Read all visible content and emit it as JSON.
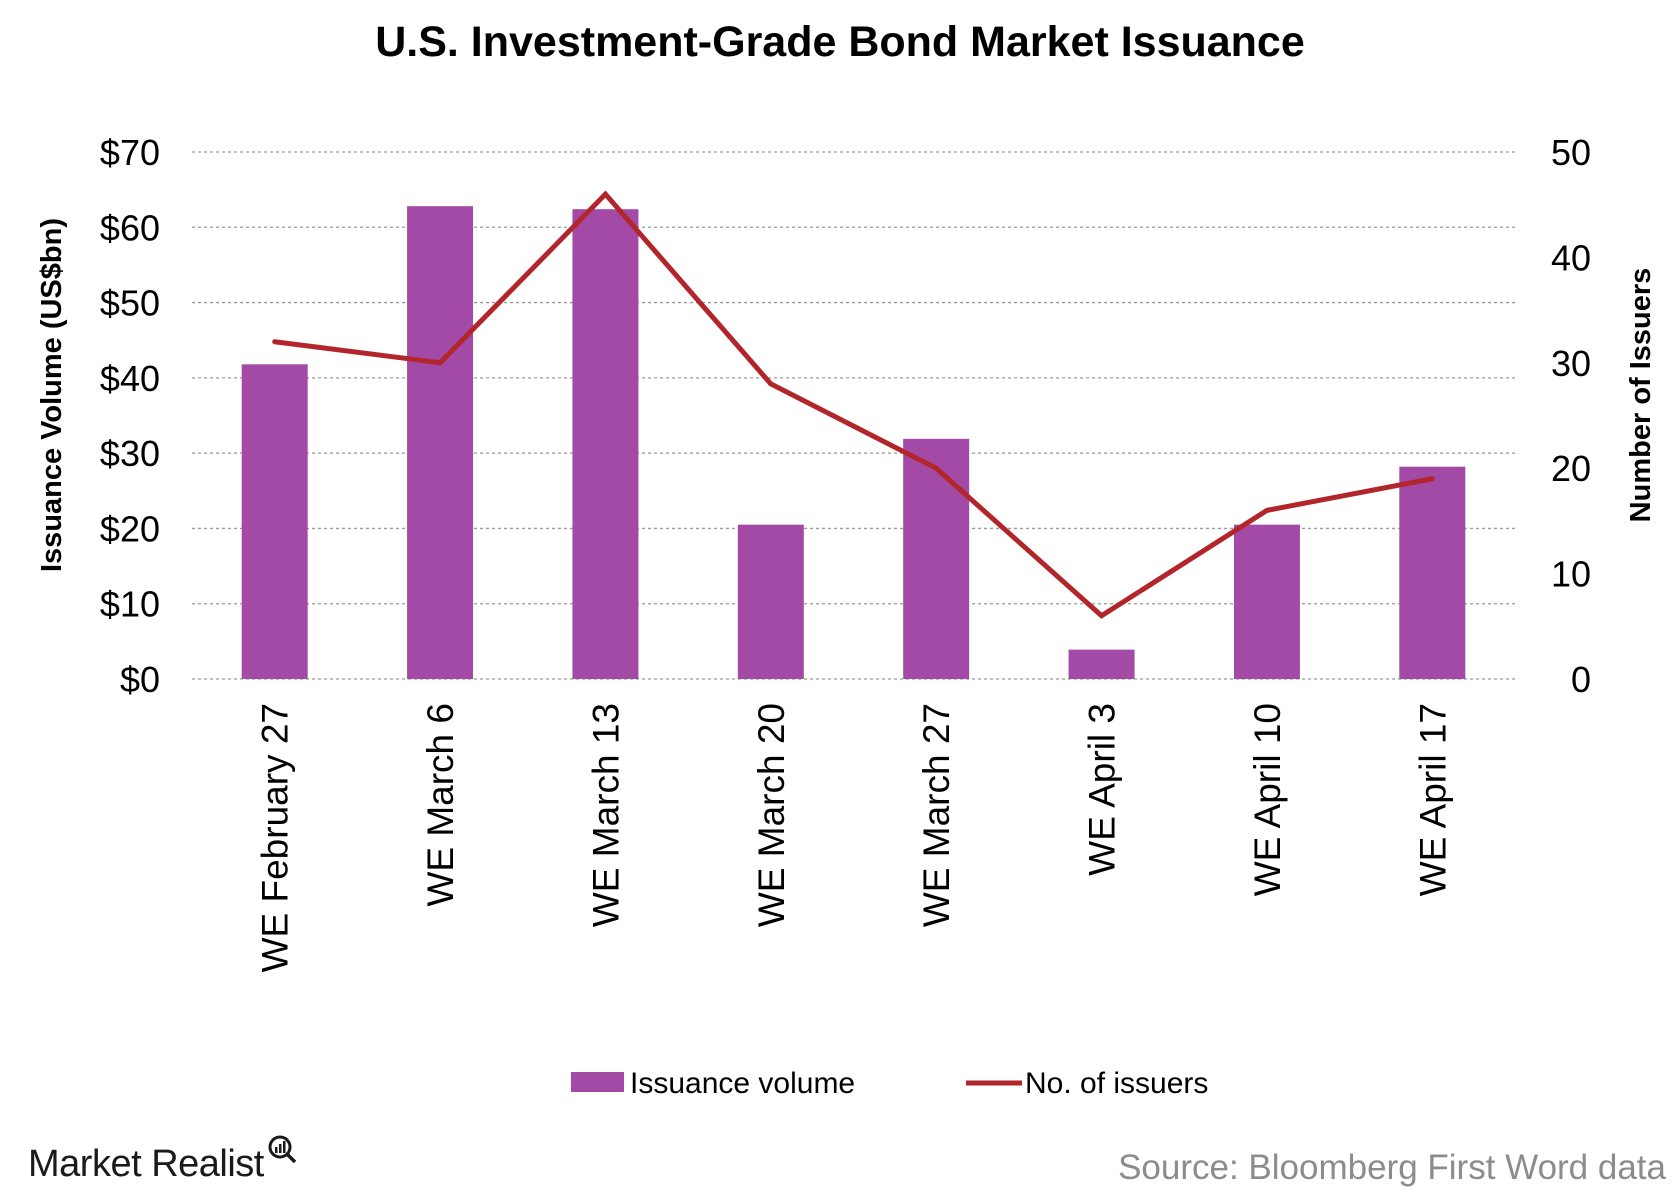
{
  "chart_data": {
    "type": "bar",
    "title": "U.S. Investment-Grade Bond Market Issuance",
    "categories": [
      "WE February 27",
      "WE March 6",
      "WE March 13",
      "WE March 20",
      "WE March 27",
      "WE April 3",
      "WE April 10",
      "WE April 17"
    ],
    "series": [
      {
        "name": "Issuance volume",
        "type": "bar",
        "axis": "left",
        "color": "#a24aa5",
        "values": [
          41.8,
          62.8,
          62.4,
          20.5,
          31.9,
          3.9,
          20.5,
          28.2
        ]
      },
      {
        "name": "No. of issuers",
        "type": "line",
        "axis": "right",
        "color": "#b2262b",
        "values": [
          32,
          30,
          46,
          28,
          20,
          6,
          16,
          19
        ]
      }
    ],
    "y_left": {
      "label": "Issuance Volume (US$bn)",
      "ylim": [
        0,
        70
      ],
      "ticks": [
        "$0",
        "$10",
        "$20",
        "$30",
        "$40",
        "$50",
        "$60",
        "$70"
      ]
    },
    "y_right": {
      "label": "Number of Issuers",
      "ylim": [
        0,
        50
      ],
      "ticks": [
        "0",
        "10",
        "20",
        "30",
        "40",
        "50"
      ]
    },
    "grid": true,
    "legend_position": "bottom"
  },
  "footer": {
    "brand": "Market Realist",
    "source": "Source: Bloomberg First Word data"
  }
}
